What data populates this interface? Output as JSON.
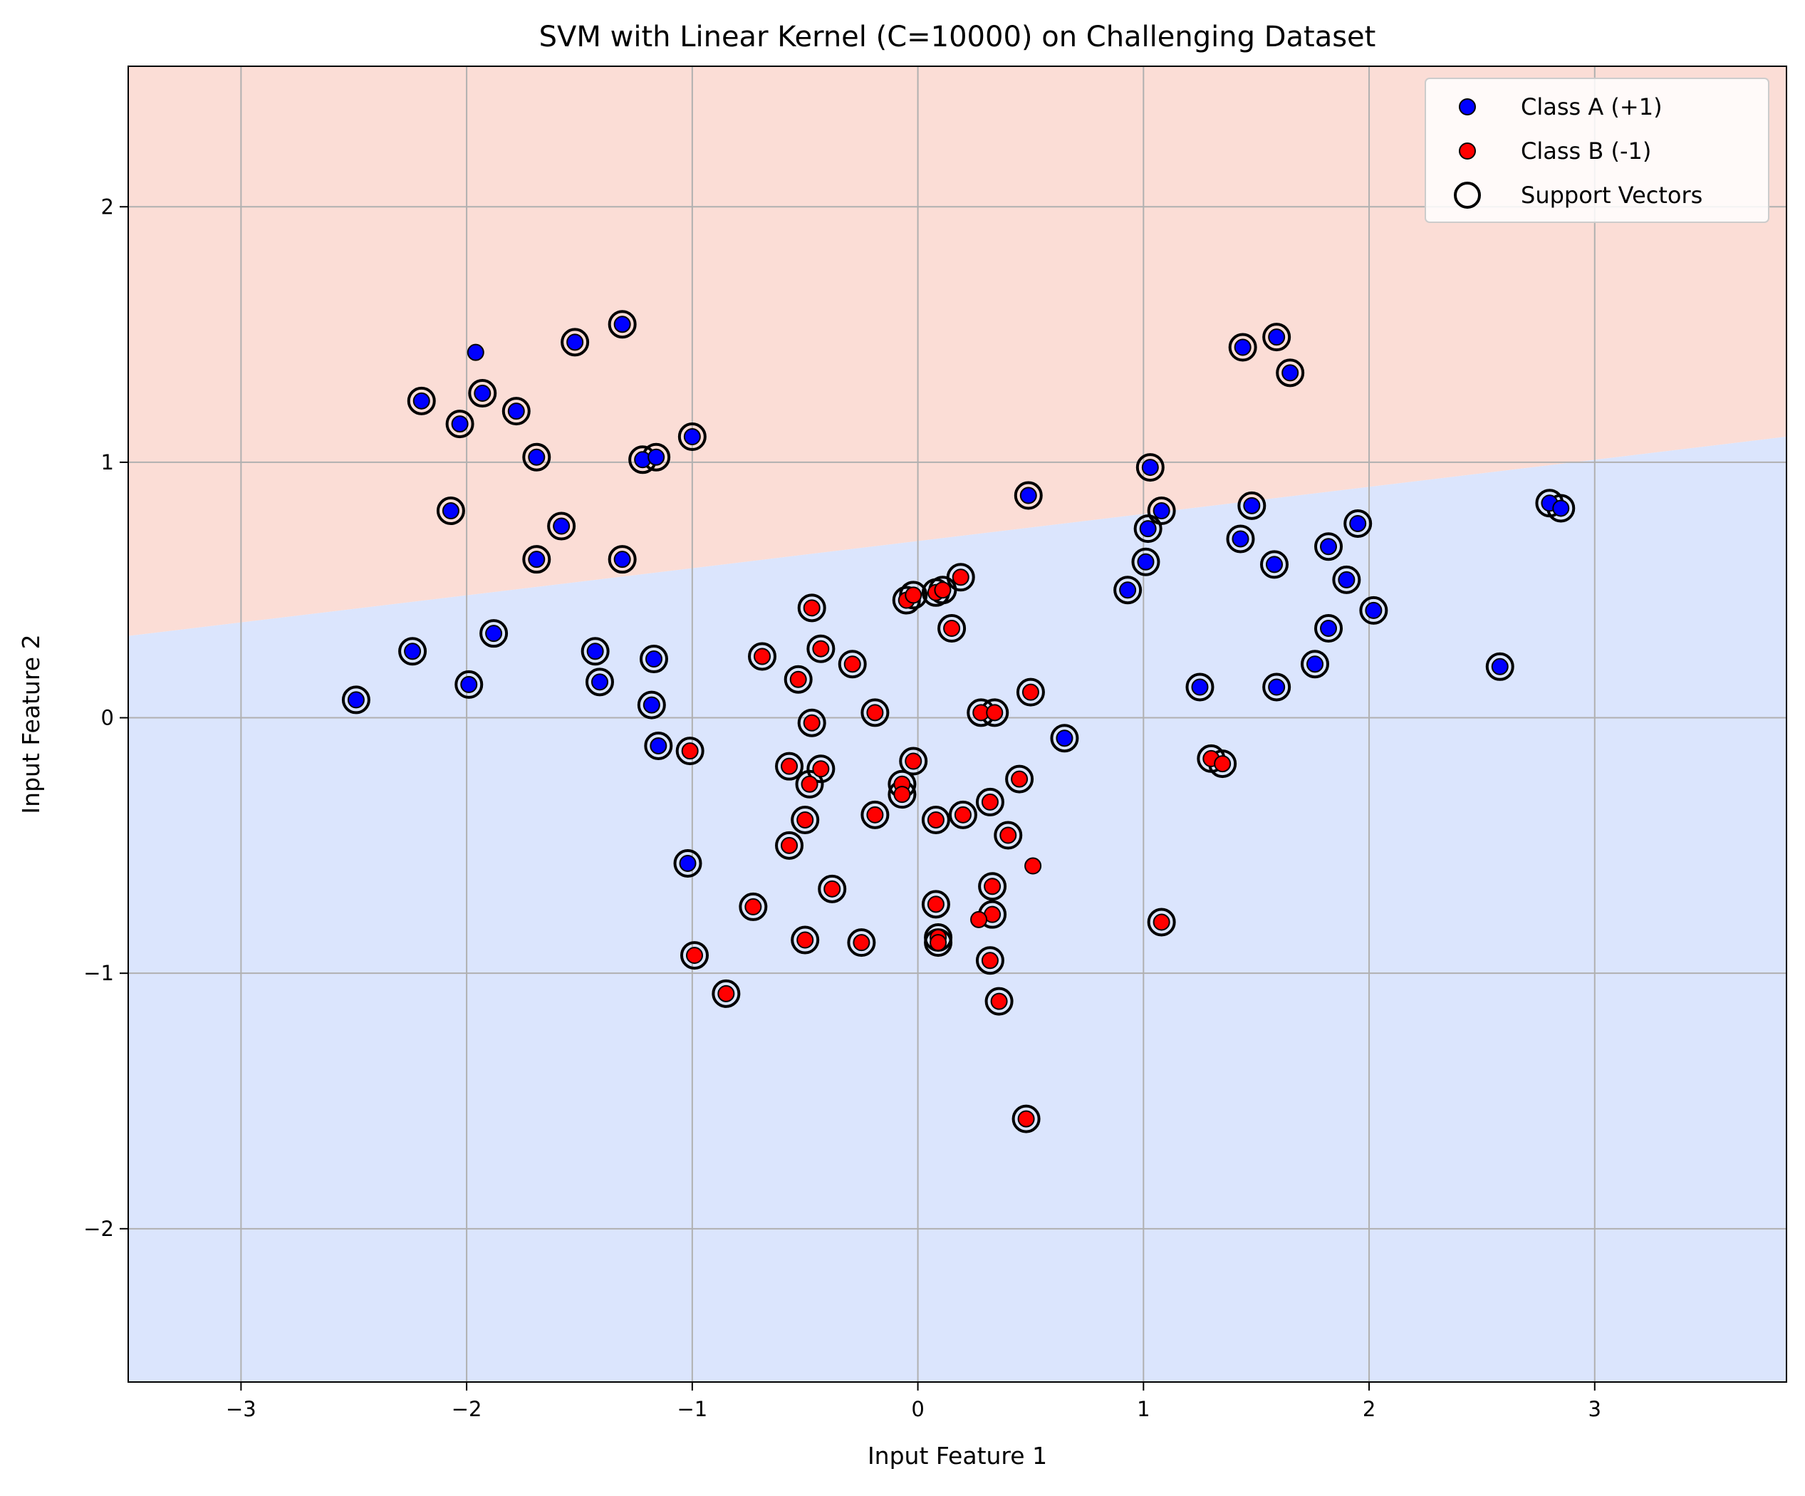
{
  "chart_data": {
    "type": "scatter",
    "title": "SVM with Linear Kernel (C=10000) on Challenging Dataset",
    "xlabel": "Input Feature 1",
    "ylabel": "Input Feature 2",
    "xlim": [
      -3.5,
      3.85
    ],
    "ylim": [
      -2.6,
      2.55
    ],
    "xticks": [
      -3,
      -2,
      -1,
      0,
      1,
      2,
      3
    ],
    "xtick_labels": [
      "−3",
      "−2",
      "−1",
      "0",
      "1",
      "2",
      "3"
    ],
    "yticks": [
      -2,
      -1,
      0,
      1,
      2
    ],
    "ytick_labels": [
      "−2",
      "−1",
      "0",
      "1",
      "2"
    ],
    "grid": true,
    "legend_position": "top-right",
    "colors": {
      "class_a": "#0000ff",
      "class_b": "#ff0000",
      "region_a": "#fbddd6",
      "region_b": "#dbe5fd",
      "grid": "#b0b0b0"
    },
    "decision_boundary": {
      "x": [
        -3.5,
        3.85
      ],
      "y": [
        0.32,
        1.1
      ]
    },
    "series": [
      {
        "name": "Class A (+1)",
        "color": "#0000ff",
        "points": [
          [
            -1.96,
            1.43,
            0
          ],
          [
            -2.2,
            1.24,
            1
          ],
          [
            -1.93,
            1.27,
            1
          ],
          [
            -2.03,
            1.15,
            1
          ],
          [
            -1.78,
            1.2,
            1
          ],
          [
            -1.52,
            1.47,
            1
          ],
          [
            -1.31,
            1.54,
            1
          ],
          [
            -1.69,
            1.02,
            1
          ],
          [
            -1.22,
            1.01,
            1
          ],
          [
            -1.16,
            1.02,
            1
          ],
          [
            -1.0,
            1.1,
            1
          ],
          [
            -2.07,
            0.81,
            1
          ],
          [
            -1.58,
            0.75,
            1
          ],
          [
            -1.69,
            0.62,
            1
          ],
          [
            -1.31,
            0.62,
            1
          ],
          [
            -2.49,
            0.07,
            1
          ],
          [
            -2.24,
            0.26,
            1
          ],
          [
            -1.99,
            0.13,
            1
          ],
          [
            -1.88,
            0.33,
            1
          ],
          [
            -1.43,
            0.26,
            1
          ],
          [
            -1.41,
            0.14,
            1
          ],
          [
            -1.17,
            0.23,
            1
          ],
          [
            -1.18,
            0.05,
            1
          ],
          [
            -1.15,
            -0.11,
            1
          ],
          [
            -1.02,
            -0.57,
            1
          ],
          [
            0.49,
            0.87,
            1
          ],
          [
            0.65,
            -0.08,
            1
          ],
          [
            1.03,
            0.98,
            1
          ],
          [
            1.02,
            0.74,
            1
          ],
          [
            1.08,
            0.81,
            1
          ],
          [
            1.01,
            0.61,
            1
          ],
          [
            0.93,
            0.5,
            1
          ],
          [
            1.44,
            1.45,
            1
          ],
          [
            1.59,
            1.49,
            1
          ],
          [
            1.65,
            1.35,
            1
          ],
          [
            1.43,
            0.7,
            1
          ],
          [
            1.48,
            0.83,
            1
          ],
          [
            1.58,
            0.6,
            1
          ],
          [
            1.82,
            0.67,
            1
          ],
          [
            1.95,
            0.76,
            1
          ],
          [
            1.9,
            0.54,
            1
          ],
          [
            2.02,
            0.42,
            1
          ],
          [
            1.82,
            0.35,
            1
          ],
          [
            1.76,
            0.21,
            1
          ],
          [
            1.59,
            0.12,
            1
          ],
          [
            1.25,
            0.12,
            1
          ],
          [
            2.58,
            0.2,
            1
          ],
          [
            2.8,
            0.84,
            1
          ],
          [
            2.85,
            0.82,
            1
          ]
        ]
      },
      {
        "name": "Class B (-1)",
        "color": "#ff0000",
        "points": [
          [
            -0.47,
            0.43,
            1
          ],
          [
            -0.05,
            0.46,
            1
          ],
          [
            -0.02,
            0.48,
            1
          ],
          [
            0.08,
            0.49,
            1
          ],
          [
            0.11,
            0.5,
            1
          ],
          [
            0.19,
            0.55,
            1
          ],
          [
            0.15,
            0.35,
            1
          ],
          [
            -0.69,
            0.24,
            1
          ],
          [
            -0.43,
            0.27,
            1
          ],
          [
            -0.29,
            0.21,
            1
          ],
          [
            -0.53,
            0.15,
            1
          ],
          [
            -0.47,
            -0.02,
            1
          ],
          [
            -0.19,
            0.02,
            1
          ],
          [
            0.28,
            0.02,
            1
          ],
          [
            0.34,
            0.02,
            1
          ],
          [
            0.5,
            0.1,
            1
          ],
          [
            -1.01,
            -0.13,
            1
          ],
          [
            -0.57,
            -0.19,
            1
          ],
          [
            -0.48,
            -0.26,
            1
          ],
          [
            -0.43,
            -0.2,
            1
          ],
          [
            -0.07,
            -0.26,
            1
          ],
          [
            -0.07,
            -0.3,
            1
          ],
          [
            -0.02,
            -0.17,
            1
          ],
          [
            -0.19,
            -0.38,
            1
          ],
          [
            -0.5,
            -0.4,
            1
          ],
          [
            -0.57,
            -0.5,
            1
          ],
          [
            0.08,
            -0.4,
            1
          ],
          [
            0.2,
            -0.38,
            1
          ],
          [
            0.32,
            -0.33,
            1
          ],
          [
            0.45,
            -0.24,
            1
          ],
          [
            0.4,
            -0.46,
            1
          ],
          [
            0.51,
            -0.58,
            0
          ],
          [
            -0.38,
            -0.67,
            1
          ],
          [
            -0.73,
            -0.74,
            1
          ],
          [
            0.33,
            -0.66,
            1
          ],
          [
            0.33,
            -0.77,
            1
          ],
          [
            0.08,
            -0.73,
            1
          ],
          [
            0.27,
            -0.79,
            0
          ],
          [
            0.09,
            -0.86,
            1
          ],
          [
            0.09,
            -0.88,
            1
          ],
          [
            -0.5,
            -0.87,
            1
          ],
          [
            -0.25,
            -0.88,
            1
          ],
          [
            -0.99,
            -0.93,
            1
          ],
          [
            0.32,
            -0.95,
            1
          ],
          [
            -0.85,
            -1.08,
            1
          ],
          [
            0.36,
            -1.11,
            1
          ],
          [
            1.08,
            -0.8,
            1
          ],
          [
            1.3,
            -0.16,
            1
          ],
          [
            1.35,
            -0.18,
            1
          ],
          [
            0.48,
            -1.57,
            1
          ]
        ]
      }
    ],
    "legend": [
      {
        "label": "Class A (+1)",
        "kind": "class_a"
      },
      {
        "label": "Class B (-1)",
        "kind": "class_b"
      },
      {
        "label": "Support Vectors",
        "kind": "support"
      }
    ]
  }
}
